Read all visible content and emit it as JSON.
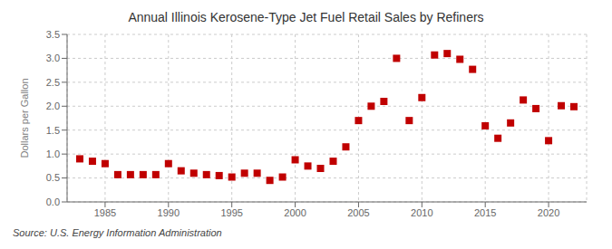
{
  "chart_data": {
    "type": "scatter",
    "title": "Annual Illinois Kerosene-Type Jet Fuel Retail Sales by Refiners",
    "ylabel": "Dollars per Gallon",
    "source": "Source: U.S. Energy Information Administration",
    "x": [
      1983,
      1984,
      1985,
      1986,
      1987,
      1988,
      1989,
      1990,
      1991,
      1992,
      1993,
      1994,
      1995,
      1996,
      1997,
      1998,
      1999,
      2000,
      2001,
      2002,
      2003,
      2004,
      2005,
      2006,
      2007,
      2008,
      2009,
      2010,
      2011,
      2012,
      2013,
      2014,
      2015,
      2016,
      2017,
      2018,
      2019,
      2020,
      2021,
      2022
    ],
    "values": [
      0.9,
      0.85,
      0.8,
      0.57,
      0.57,
      0.57,
      0.57,
      0.8,
      0.65,
      0.6,
      0.57,
      0.55,
      0.52,
      0.6,
      0.6,
      0.45,
      0.52,
      0.88,
      0.75,
      0.7,
      0.85,
      1.15,
      1.7,
      2.0,
      2.1,
      3.0,
      1.7,
      2.18,
      3.07,
      3.1,
      2.98,
      2.77,
      1.59,
      1.33,
      1.65,
      2.13,
      1.95,
      1.28,
      2.01,
      1.99
    ],
    "color": "#c00000",
    "marker": "square",
    "xlim": [
      1982,
      2023
    ],
    "xticks": [
      1985,
      1990,
      1995,
      2000,
      2005,
      2010,
      2015,
      2020
    ],
    "ylim": [
      0.0,
      3.5
    ],
    "yticks": [
      {
        "value": 0,
        "label": "0.0"
      },
      0.5,
      {
        "value": 1,
        "label": "1.0"
      },
      1.5,
      {
        "value": 2,
        "label": "2.0"
      },
      2.5,
      {
        "value": 3,
        "label": "3.0"
      },
      3.5
    ],
    "grid": true
  }
}
